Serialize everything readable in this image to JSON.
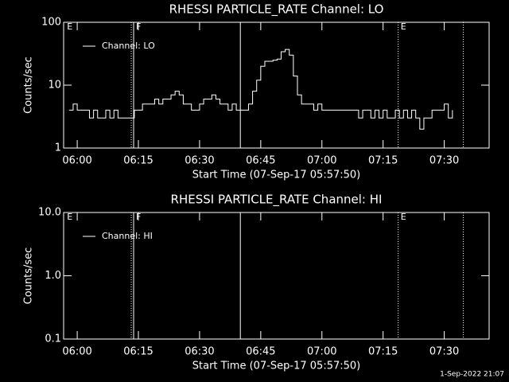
{
  "chart_data": [
    {
      "type": "line",
      "title": "RHESSI PARTICLE_RATE Channel: LO",
      "xlabel": "Start Time (07-Sep-17 05:57:50)",
      "ylabel": "Counts/sec",
      "xlim": [
        "05:56:40",
        "07:41:00"
      ],
      "xticks": [
        "06:00",
        "06:15",
        "06:30",
        "06:45",
        "07:00",
        "07:15",
        "07:30"
      ],
      "ylim": [
        1,
        100
      ],
      "yticks": [
        1,
        10,
        100
      ],
      "log_y": true,
      "legend": "top-left",
      "vlines": [
        {
          "x": "06:13:15",
          "style": "dotted"
        },
        {
          "x": "06:13:50",
          "style": "solid"
        },
        {
          "x": "06:40:00",
          "style": "solid"
        },
        {
          "x": "07:18:42",
          "style": "dotted"
        },
        {
          "x": "07:34:40",
          "style": "dotted"
        }
      ],
      "annotations": [
        {
          "x": "05:57:30",
          "text": "E"
        },
        {
          "x": "06:14:25",
          "text": "F"
        },
        {
          "x": "07:19:18",
          "text": "E"
        }
      ],
      "series": [
        {
          "name": "Channel: LO",
          "color": "#ffffff",
          "x": [
            "05:58",
            "05:59",
            "06:00",
            "06:01",
            "06:02",
            "06:03",
            "06:04",
            "06:05",
            "06:06",
            "06:07",
            "06:08",
            "06:09",
            "06:10",
            "06:11",
            "06:12",
            "06:13",
            "06:14",
            "06:15",
            "06:16",
            "06:17",
            "06:18",
            "06:19",
            "06:20",
            "06:21",
            "06:22",
            "06:23",
            "06:24",
            "06:25",
            "06:26",
            "06:27",
            "06:28",
            "06:29",
            "06:30",
            "06:31",
            "06:32",
            "06:33",
            "06:34",
            "06:35",
            "06:36",
            "06:37",
            "06:38",
            "06:39",
            "06:40",
            "06:41",
            "06:42",
            "06:43",
            "06:44",
            "06:45",
            "06:46",
            "06:47",
            "06:48",
            "06:49",
            "06:50",
            "06:51",
            "06:52",
            "06:53",
            "06:54",
            "06:55",
            "06:56",
            "06:57",
            "06:58",
            "06:59",
            "07:00",
            "07:01",
            "07:02",
            "07:03",
            "07:04",
            "07:05",
            "07:06",
            "07:07",
            "07:08",
            "07:09",
            "07:10",
            "07:11",
            "07:12",
            "07:13",
            "07:14",
            "07:15",
            "07:16",
            "07:17",
            "07:18",
            "07:19",
            "07:20",
            "07:21",
            "07:22",
            "07:23",
            "07:24",
            "07:25",
            "07:26",
            "07:27",
            "07:28",
            "07:29",
            "07:30",
            "07:31",
            "07:32"
          ],
          "values": [
            4,
            5,
            4,
            4,
            4,
            3,
            4,
            3,
            3,
            4,
            3,
            4,
            3,
            3,
            3,
            3,
            4,
            4,
            5,
            5,
            5,
            6,
            5,
            6,
            6,
            7,
            8,
            7,
            5,
            5,
            4,
            4,
            5,
            6,
            6,
            7,
            6,
            5,
            5,
            4,
            5,
            4,
            4,
            4,
            5,
            8,
            12,
            20,
            24,
            24,
            25,
            26,
            34,
            37,
            30,
            14,
            7,
            5,
            5,
            5,
            4,
            5,
            4,
            4,
            4,
            4,
            4,
            4,
            4,
            4,
            4,
            3,
            4,
            4,
            3,
            4,
            3,
            4,
            3,
            3,
            4,
            3,
            4,
            3,
            4,
            3,
            2,
            3,
            3,
            4,
            4,
            4,
            5,
            3,
            4
          ]
        }
      ]
    },
    {
      "type": "line",
      "title": "RHESSI PARTICLE_RATE Channel: HI",
      "xlabel": "Start Time (07-Sep-17 05:57:50)",
      "ylabel": "Counts/sec",
      "xlim": [
        "05:56:40",
        "07:41:00"
      ],
      "xticks": [
        "06:00",
        "06:15",
        "06:30",
        "06:45",
        "07:00",
        "07:15",
        "07:30"
      ],
      "ylim": [
        0.1,
        10
      ],
      "yticks": [
        0.1,
        {
          "value": 1,
          "label": "1.0"
        },
        {
          "value": 10,
          "label": "10.0"
        }
      ],
      "log_y": true,
      "legend": "top-left",
      "vlines": [
        {
          "x": "06:13:15",
          "style": "dotted"
        },
        {
          "x": "06:13:50",
          "style": "solid"
        },
        {
          "x": "06:40:00",
          "style": "solid"
        },
        {
          "x": "07:18:42",
          "style": "dotted"
        },
        {
          "x": "07:34:40",
          "style": "dotted"
        }
      ],
      "annotations": [
        {
          "x": "05:57:30",
          "text": "E"
        },
        {
          "x": "06:14:25",
          "text": "F"
        },
        {
          "x": "07:19:18",
          "text": "E"
        }
      ],
      "series": [
        {
          "name": "Channel: HI",
          "color": "#ffffff",
          "x": [],
          "values": []
        }
      ]
    }
  ],
  "footer": "1-Sep-2022 21:07"
}
